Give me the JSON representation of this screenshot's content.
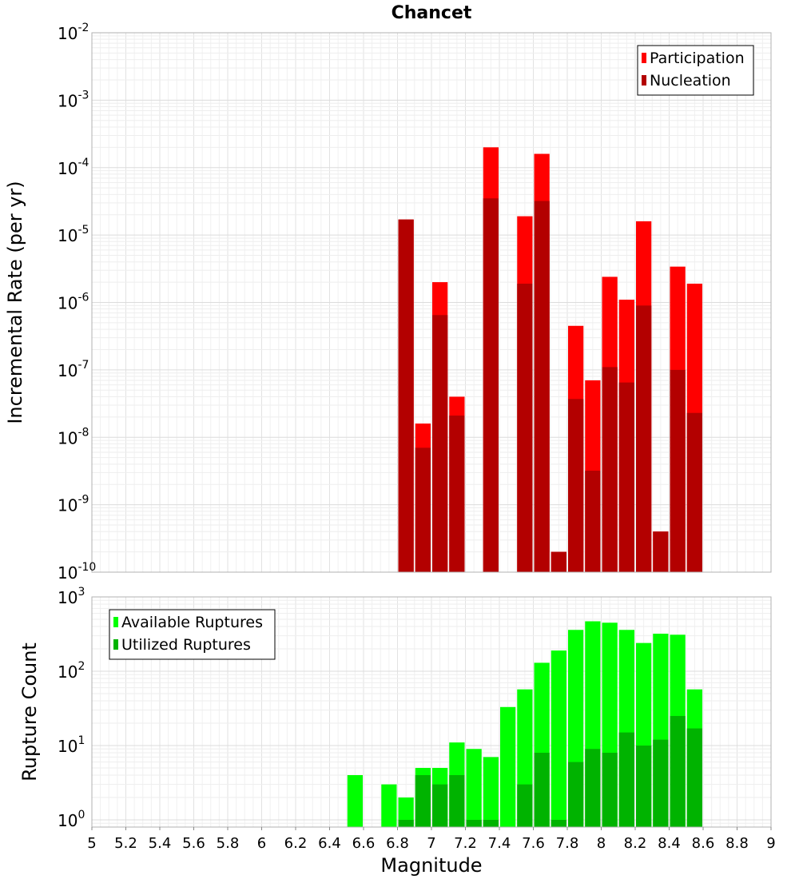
{
  "chart_data": [
    {
      "type": "bar",
      "title": "Chancet",
      "xlabel": "",
      "ylabel": "Incremental Rate (per yr)",
      "yscale": "log",
      "ylim": [
        1e-10,
        0.01
      ],
      "xlim": [
        5,
        9
      ],
      "ytick_exponents": [
        -2,
        -3,
        -4,
        -5,
        -6,
        -7,
        -8,
        -9,
        -10
      ],
      "legend_position": "top-right",
      "colors": {
        "participation": "#ff0000",
        "nucleation": "#b30000"
      },
      "x": [
        6.85,
        6.95,
        7.05,
        7.15,
        7.35,
        7.55,
        7.65,
        7.75,
        7.85,
        7.95,
        8.05,
        8.15,
        8.25,
        8.35,
        8.45,
        8.55
      ],
      "series": [
        {
          "name": "Participation",
          "values": [
            1.7e-05,
            1.6e-08,
            2e-06,
            4e-08,
            0.0002,
            1.9e-05,
            0.00016,
            2e-10,
            4.5e-07,
            7e-08,
            2.4e-06,
            1.1e-06,
            1.6e-05,
            4e-10,
            3.4e-06,
            1.9e-06
          ]
        },
        {
          "name": "Nucleation",
          "values": [
            1.7e-05,
            7e-09,
            6.5e-07,
            2.1e-08,
            3.5e-05,
            1.9e-06,
            3.2e-05,
            2e-10,
            3.7e-08,
            3.2e-09,
            1.1e-07,
            6.5e-08,
            9e-07,
            4e-10,
            1e-07,
            2.3e-08
          ]
        }
      ]
    },
    {
      "type": "bar",
      "title": "",
      "xlabel": "Magnitude",
      "ylabel": "Rupture Count",
      "yscale": "log",
      "ylim": [
        0.8,
        1000
      ],
      "xlim": [
        5,
        9
      ],
      "ytick_exponents": [
        3,
        2,
        1,
        0
      ],
      "xticks": [
        "5",
        "5.2",
        "5.4",
        "5.6",
        "5.8",
        "6",
        "6.2",
        "6.4",
        "6.6",
        "6.8",
        "7",
        "7.2",
        "7.4",
        "7.6",
        "7.8",
        "8",
        "8.2",
        "8.4",
        "8.6",
        "8.8",
        "9"
      ],
      "legend_position": "top-left",
      "colors": {
        "available": "#00ff00",
        "utilized": "#00b300"
      },
      "x": [
        6.55,
        6.75,
        6.85,
        6.95,
        7.05,
        7.15,
        7.25,
        7.35,
        7.45,
        7.55,
        7.65,
        7.75,
        7.85,
        7.95,
        8.05,
        8.15,
        8.25,
        8.35,
        8.45,
        8.55
      ],
      "series": [
        {
          "name": "Available Ruptures",
          "values": [
            4,
            3,
            2,
            5,
            5,
            11,
            9,
            7,
            33,
            57,
            130,
            190,
            360,
            470,
            450,
            360,
            240,
            320,
            310,
            57
          ]
        },
        {
          "name": "Utilized Ruptures",
          "values": [
            0,
            0,
            1,
            4,
            3,
            4,
            1,
            1,
            0,
            3,
            8,
            1,
            6,
            9,
            8,
            15,
            10,
            12,
            25,
            17
          ]
        }
      ]
    }
  ]
}
